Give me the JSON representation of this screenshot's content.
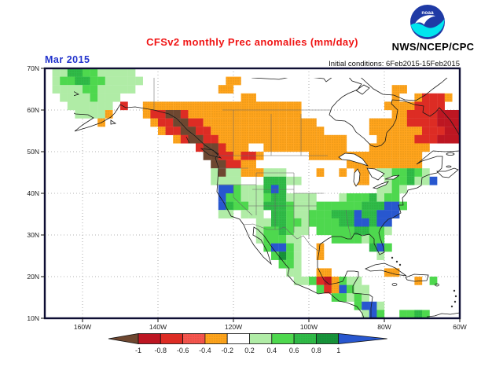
{
  "header": {
    "title": "CFSv2 monthly Prec anomalies (mm/day)",
    "title_color": "#f01414",
    "date_label": "Mar 2015",
    "date_color": "#2233cc",
    "init_conditions": "Initial conditions: 6Feb2015-15Feb2015",
    "agency": "NWS/NCEP/CPC",
    "logo_text": "noaa",
    "logo_colors": {
      "disc": "#1f3aa5",
      "wave": "#00e5ee",
      "bird": "#ffffff"
    }
  },
  "map": {
    "bounds": {
      "lon_west": 170,
      "lon_east": 60,
      "lat_north": 70,
      "lat_south": 10
    },
    "x_axis": {
      "labels": [
        "160W",
        "140W",
        "120W",
        "100W",
        "80W",
        "60W"
      ],
      "lon_deg": [
        160,
        140,
        120,
        100,
        80,
        60
      ]
    },
    "y_axis": {
      "labels": [
        "70N",
        "60N",
        "50N",
        "40N",
        "30N",
        "20N",
        "10N"
      ],
      "lat_deg": [
        70,
        60,
        50,
        40,
        30,
        20,
        10
      ]
    },
    "gridline_lons": [
      160,
      140,
      120,
      100,
      80
    ],
    "gridline_lats": [
      60,
      50,
      40,
      30,
      20
    ],
    "grid": {
      "cell_deg": 2,
      "rows": [
        ".ggddGGggggg...........................................",
        ".gGGddGGggggg...........oo.............................",
        ".ggggGGggggg...........oo.....................oo.......",
        "..ggggGggg................oo..................o..oRRRo.",
        "...gggggg.R..ooooooooooooooooooooo...........ooooRRRR..",
        "....ggggo....oRRMMRooooooooooooooo............ooRRRRKKK",
        ".......o......oRRMMRRooooooooooooooo.......oooooRRRRKKK",
        "...............oRRMMRRooooooooooooooo......oooooooRRRKK",
        ".................oRMMRRooooooooooooooooo....oooooRRRKKK",
        "....................RMMRooo..ooooooooooo...oooooooo....",
        ".....................MMRRoRRo......ooooooooooooooo.....",
        "......................MMRRoo............oooooooooo.....",
        "......................gMggoooggg....o..o.oo.ggGGdGg....",
        "......................gggg...dddgg.......oo..gGGdggB...",
        ".......................BBGgggdBd............ggGg.......",
        ".......................BGGgggGddgggg...gGGGdgGG........",
        ".......................BdGGggdddGgggGGGGGGdddBBG.......",
        ".......................gg.ggg.ddGggGGGdddBddBBB........",
        "............................ggddGGgGGGGddBBdBB.........",
        "............................gGGdGgg.GGGGGddGGg.........",
        "............................gGGGgg....GGGGgGG..........",
        ".............................GBBGg..o......dBG.........",
        "..............................GDGg..o.......g..........",
        "...............................GGg.....................",
        "................................gg..oo.......oo........",
        ".................................ggGRKoGgg.......o.G...",
        "....................................GRoBGgg............",
        "......................................GGgGg............",
        ".........................................GBBg..........",
        "..........................................gBG..GGdG...."
      ]
    }
  },
  "palette": {
    "colors": {
      "M": "#6e4730",
      "K": "#bd1622",
      "R": "#dd2c24",
      "r": "#f6554e",
      "o": "#ffa41c",
      "w": "#ffffff",
      "g": "#b0eca6",
      "G": "#4ed84e",
      "d": "#2fbc48",
      "D": "#16943a",
      "B": "#2857cf"
    },
    "stippled": [
      "o",
      "r",
      "d",
      "D"
    ],
    "legend": {
      "M": "below -1",
      "K": "-1 to -0.8",
      "R": "-0.8 to -0.6",
      "r": "-0.6 to -0.4",
      "o": "-0.4 to -0.2",
      "w": "-0.2 to 0.2",
      "g": "0.2 to 0.4",
      "G": "0.4 to 0.6",
      "d": "0.6 to 0.8",
      "D": "0.8 to 1",
      "B": "above 1"
    }
  },
  "colorbar": {
    "tick_labels": [
      "-1",
      "-0.8",
      "-0.6",
      "-0.4",
      "-0.2",
      "0.2",
      "0.4",
      "0.6",
      "0.8",
      "1"
    ],
    "segment_codes": [
      "K",
      "R",
      "r",
      "o",
      "w",
      "g",
      "G",
      "d",
      "D"
    ],
    "arrow_left_code": "M",
    "arrow_right_code": "B"
  }
}
